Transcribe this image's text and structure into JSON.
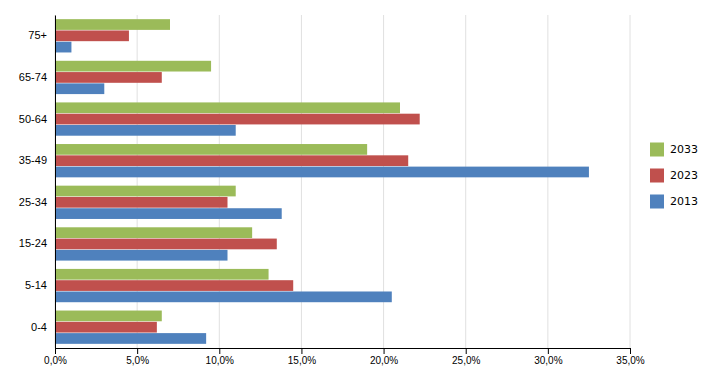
{
  "chart_data": {
    "type": "bar",
    "orientation": "horizontal",
    "categories": [
      "0-4",
      "5-14",
      "15-24",
      "25-34",
      "35-49",
      "50-64",
      "65-74",
      "75+"
    ],
    "series": [
      {
        "name": "2033",
        "color": "#9bbb59",
        "values": [
          0.065,
          0.13,
          0.12,
          0.11,
          0.19,
          0.21,
          0.095,
          0.07
        ]
      },
      {
        "name": "2023",
        "color": "#c0504d",
        "values": [
          0.062,
          0.145,
          0.135,
          0.105,
          0.215,
          0.222,
          0.065,
          0.045
        ]
      },
      {
        "name": "2013",
        "color": "#4f81bd",
        "values": [
          0.092,
          0.205,
          0.105,
          0.138,
          0.325,
          0.11,
          0.03,
          0.01
        ]
      }
    ],
    "xlim": [
      0.0,
      0.35
    ],
    "xticks": [
      {
        "value": 0.0,
        "label": "0,0%"
      },
      {
        "value": 0.05,
        "label": "5,0%"
      },
      {
        "value": 0.1,
        "label": "10,0%"
      },
      {
        "value": 0.15,
        "label": "15,0%"
      },
      {
        "value": 0.2,
        "label": "20,0%"
      },
      {
        "value": 0.25,
        "label": "25,0%"
      },
      {
        "value": 0.3,
        "label": "30,0%"
      },
      {
        "value": 0.35,
        "label": "35,0%"
      }
    ],
    "grid": true,
    "legend": "right"
  }
}
